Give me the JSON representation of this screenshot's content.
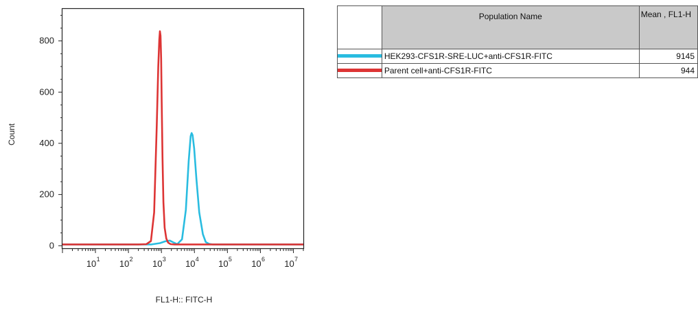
{
  "chart_data": {
    "type": "histogram",
    "xlabel": "FL1-H:: FITC-H",
    "ylabel": "Count",
    "xscale": "log",
    "xlim": [
      1,
      20000000
    ],
    "ylim": [
      -10,
      925
    ],
    "yticks": [
      0,
      200,
      400,
      600,
      800
    ],
    "xticks": [
      {
        "value": 10,
        "base": "10",
        "exp": "1"
      },
      {
        "value": 100,
        "base": "10",
        "exp": "2"
      },
      {
        "value": 1000,
        "base": "10",
        "exp": "3"
      },
      {
        "value": 10000,
        "base": "10",
        "exp": "4"
      },
      {
        "value": 100000,
        "base": "10",
        "exp": "5"
      },
      {
        "value": 1000000,
        "base": "10",
        "exp": "6"
      },
      {
        "value": 10000000,
        "base": "10",
        "exp": "7"
      }
    ],
    "series": [
      {
        "name": "HEK293-CFS1R-SRE-LUC+anti-CFS1R-FITC",
        "color": "#29bce0",
        "x": [
          1,
          100,
          500,
          900,
          1300,
          1800,
          2200,
          3000,
          4200,
          5500,
          6700,
          7700,
          8200,
          8800,
          9800,
          11500,
          14000,
          18000,
          22000,
          28000,
          35000,
          45000,
          60000,
          20000000
        ],
        "y": [
          5,
          5,
          5,
          10,
          17,
          20,
          14,
          6,
          25,
          140,
          330,
          428,
          440,
          432,
          380,
          260,
          130,
          45,
          14,
          7,
          5,
          5,
          5,
          5
        ]
      },
      {
        "name": "Parent cell+anti-CFS1R-FITC",
        "color": "#dd3434",
        "x": [
          1,
          200,
          350,
          480,
          600,
          720,
          800,
          860,
          900,
          940,
          980,
          1020,
          1080,
          1150,
          1250,
          1400,
          1600,
          1900,
          2500,
          4000,
          20000000
        ],
        "y": [
          5,
          5,
          6,
          18,
          130,
          470,
          700,
          805,
          838,
          820,
          730,
          560,
          340,
          170,
          70,
          28,
          12,
          6,
          5,
          5,
          5
        ]
      }
    ]
  },
  "legend_table": {
    "headers": [
      "",
      "Population Name",
      "Mean , FL1-H"
    ],
    "rows": [
      {
        "name": "HEK293-CFS1R-SRE-LUC+anti-CFS1R-FITC",
        "mean": "9145",
        "color": "#29bce0"
      },
      {
        "name": "Parent cell+anti-CFS1R-FITC",
        "mean": "944",
        "color": "#dd3434"
      }
    ]
  }
}
